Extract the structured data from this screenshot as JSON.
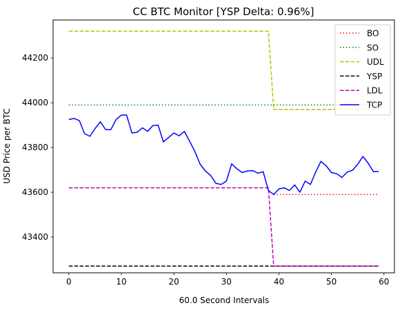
{
  "chart_data": {
    "type": "line",
    "title": "CC BTC Monitor [YSP Delta: 0.96%]",
    "xlabel": "60.0 Second Intervals",
    "ylabel": "USD Price per BTC",
    "xlim": [
      -3,
      62
    ],
    "ylim": [
      43240,
      44370
    ],
    "xticks": [
      0,
      10,
      20,
      30,
      40,
      50,
      60
    ],
    "yticks": [
      43400,
      43600,
      43800,
      44000,
      44200
    ],
    "grid": false,
    "legend_position": "top-right",
    "series": [
      {
        "name": "BO",
        "color": "#ff0000",
        "style": "dotted",
        "x": [
          39,
          59
        ],
        "y": [
          43590,
          43590
        ]
      },
      {
        "name": "SO",
        "color": "#008000",
        "style": "dotted",
        "x": [
          0,
          59
        ],
        "y": [
          43990,
          43990
        ]
      },
      {
        "name": "UDL",
        "color": "#bfbf00",
        "style": "dashed",
        "x": [
          0,
          38,
          39,
          59
        ],
        "y": [
          44320,
          44320,
          43970,
          43970
        ]
      },
      {
        "name": "YSP",
        "color": "#000000",
        "style": "dashed",
        "x": [
          0,
          59
        ],
        "y": [
          43270,
          43270
        ]
      },
      {
        "name": "LDL",
        "color": "#bf00bf",
        "style": "dashed",
        "x": [
          0,
          38,
          39,
          59
        ],
        "y": [
          43620,
          43620,
          43270,
          43270
        ]
      },
      {
        "name": "TCP",
        "color": "#0000ff",
        "style": "solid",
        "x": [
          0,
          1,
          2,
          3,
          4,
          5,
          6,
          7,
          8,
          9,
          10,
          11,
          12,
          13,
          14,
          15,
          16,
          17,
          18,
          19,
          20,
          21,
          22,
          23,
          24,
          25,
          26,
          27,
          28,
          29,
          30,
          31,
          32,
          33,
          34,
          35,
          36,
          37,
          38,
          39,
          40,
          41,
          42,
          43,
          44,
          45,
          46,
          47,
          48,
          49,
          50,
          51,
          52,
          53,
          54,
          55,
          56,
          57,
          58,
          59
        ],
        "y": [
          43925,
          43930,
          43920,
          43862,
          43850,
          43885,
          43915,
          43880,
          43880,
          43925,
          43945,
          43945,
          43865,
          43868,
          43888,
          43872,
          43898,
          43900,
          43825,
          43845,
          43865,
          43852,
          43872,
          43828,
          43782,
          43725,
          43695,
          43675,
          43640,
          43635,
          43650,
          43727,
          43705,
          43688,
          43695,
          43697,
          43685,
          43692,
          43608,
          43590,
          43615,
          43620,
          43608,
          43633,
          43600,
          43650,
          43635,
          43690,
          43738,
          43718,
          43688,
          43683,
          43666,
          43690,
          43698,
          43725,
          43760,
          43730,
          43692,
          43693
        ]
      }
    ]
  }
}
